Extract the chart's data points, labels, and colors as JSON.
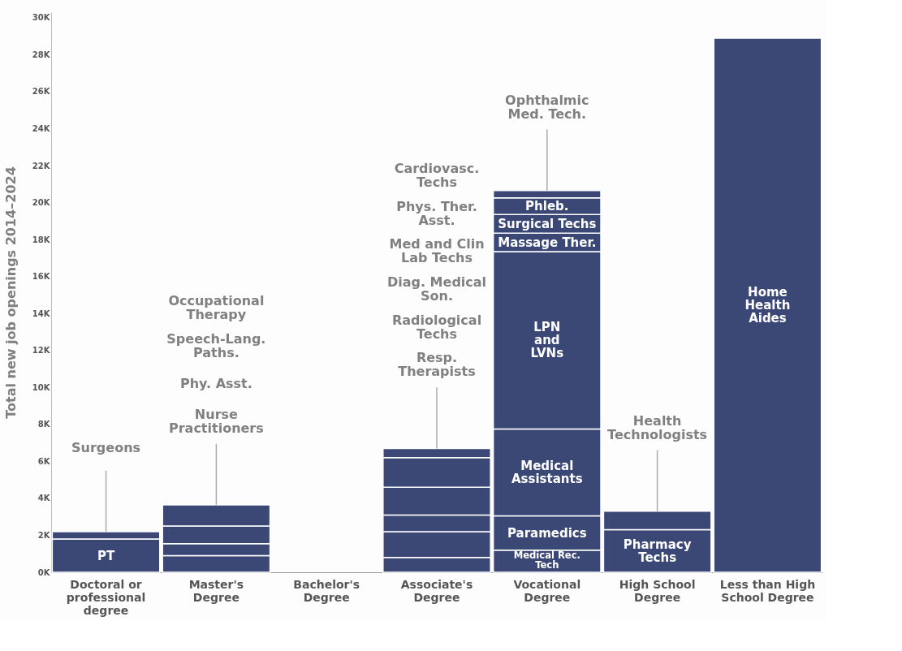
{
  "chart_data": {
    "type": "bar",
    "stacked": true,
    "ylabel": "Total new job openings 2014–2024",
    "categories": [
      "Doctoral or\nprofessional\ndegree",
      "Master's\nDegree",
      "Bachelor's\nDegree",
      "Associate's\nDegree",
      "Vocational\nDegree",
      "High School\nDegree",
      "Less than High\nSchool Degree"
    ],
    "series": [
      {
        "name": "PT",
        "color": "#3b4876",
        "values": [
          1.8,
          null,
          null,
          null,
          null,
          null,
          null
        ]
      },
      {
        "color": "#3b4876",
        "values": [
          0.4,
          null,
          null,
          null,
          null,
          null,
          null
        ]
      },
      {
        "color": "#3b4876",
        "values": [
          null,
          0.9,
          null,
          null,
          null,
          null,
          null
        ]
      },
      {
        "color": "#3b4876",
        "values": [
          null,
          0.65,
          null,
          null,
          null,
          null,
          null
        ]
      },
      {
        "color": "#3b4876",
        "values": [
          null,
          0.95,
          null,
          null,
          null,
          null,
          null
        ]
      },
      {
        "color": "#3b4876",
        "values": [
          null,
          1.15,
          null,
          null,
          null,
          null,
          null
        ]
      },
      {
        "color": "#3b4876",
        "values": [
          null,
          null,
          null,
          0.8,
          null,
          null,
          null
        ]
      },
      {
        "color": "#3b4876",
        "values": [
          null,
          null,
          null,
          1.4,
          null,
          null,
          null
        ]
      },
      {
        "color": "#3b4876",
        "values": [
          null,
          null,
          null,
          0.9,
          null,
          null,
          null
        ]
      },
      {
        "color": "#3b4876",
        "values": [
          null,
          null,
          null,
          1.5,
          null,
          null,
          null
        ]
      },
      {
        "color": "#3b4876",
        "values": [
          null,
          null,
          null,
          1.6,
          null,
          null,
          null
        ]
      },
      {
        "color": "#3b4876",
        "values": [
          null,
          null,
          null,
          0.5,
          null,
          null,
          null
        ]
      },
      {
        "name": "Medical Rec.\nTech",
        "color": "#3b4876",
        "values": [
          null,
          null,
          null,
          null,
          1.2,
          null,
          null
        ]
      },
      {
        "name": "Paramedics",
        "color": "#3b4876",
        "values": [
          null,
          null,
          null,
          null,
          1.85,
          null,
          null
        ]
      },
      {
        "name": "Medical\nAssistants",
        "color": "#3b4876",
        "values": [
          null,
          null,
          null,
          null,
          4.7,
          null,
          null
        ]
      },
      {
        "name": "LPN\nand\nLVNs",
        "color": "#3b4876",
        "values": [
          null,
          null,
          null,
          null,
          9.6,
          null,
          null
        ]
      },
      {
        "name": "Massage Ther.",
        "color": "#3b4876",
        "values": [
          null,
          null,
          null,
          null,
          1.0,
          null,
          null
        ]
      },
      {
        "name": "Surgical Techs",
        "color": "#3b4876",
        "values": [
          null,
          null,
          null,
          null,
          1.0,
          null,
          null
        ]
      },
      {
        "name": "Phleb.",
        "color": "#3b4876",
        "values": [
          null,
          null,
          null,
          null,
          0.9,
          null,
          null
        ]
      },
      {
        "color": "#3b4876",
        "values": [
          null,
          null,
          null,
          null,
          0.4,
          null,
          null
        ]
      },
      {
        "name": "Pharmacy\nTechs",
        "color": "#3b4876",
        "values": [
          null,
          null,
          null,
          null,
          null,
          2.3,
          null
        ]
      },
      {
        "color": "#3b4876",
        "values": [
          null,
          null,
          null,
          null,
          null,
          1.0,
          null
        ]
      },
      {
        "name": "Home\nHealth\nAides",
        "color": "#3b4876",
        "values": [
          null,
          null,
          null,
          null,
          null,
          null,
          28.9
        ]
      }
    ],
    "ylim": [
      0,
      30.3
    ],
    "yticks": [
      {
        "value": 0,
        "label": "0K"
      },
      {
        "value": 2,
        "label": "2K"
      },
      {
        "value": 4,
        "label": "4K"
      },
      {
        "value": 6,
        "label": "6K"
      },
      {
        "value": 8,
        "label": "8K"
      },
      {
        "value": 10,
        "label": "10K"
      },
      {
        "value": 12,
        "label": "12K"
      },
      {
        "value": 14,
        "label": "14K"
      },
      {
        "value": 16,
        "label": "16K"
      },
      {
        "value": 18,
        "label": "18K"
      },
      {
        "value": 20,
        "label": "20K"
      },
      {
        "value": 22,
        "label": "22K"
      },
      {
        "value": 24,
        "label": "24K"
      },
      {
        "value": 26,
        "label": "26K"
      },
      {
        "value": 28,
        "label": "28K"
      },
      {
        "value": 30,
        "label": "30K"
      }
    ],
    "annotations": [
      {
        "text": "Surgeons",
        "x": "Doctoral or\nprofessional\ndegree"
      },
      {
        "text": "Nurse\nPractitioners",
        "x": "Master's\nDegree"
      },
      "Phy. Asst.",
      "Speech-Lang.\nPaths.",
      "Occupational\nTherapy",
      {
        "text": "Resp.\nTherapists",
        "x": "Associate's\nDegree"
      },
      "Radiological\nTechs",
      "Diag. Medical\nSon.",
      "Med and  Clin\nLab Techs",
      "Phys. Ther.\nAsst.",
      "Cardiovasc.\nTechs",
      {
        "text": "Ophthalmic\nMed. Tech.",
        "x": "Vocational\nDegree"
      },
      {
        "text": "Health\nTechnologists",
        "x": "High School\nDegree"
      }
    ]
  }
}
